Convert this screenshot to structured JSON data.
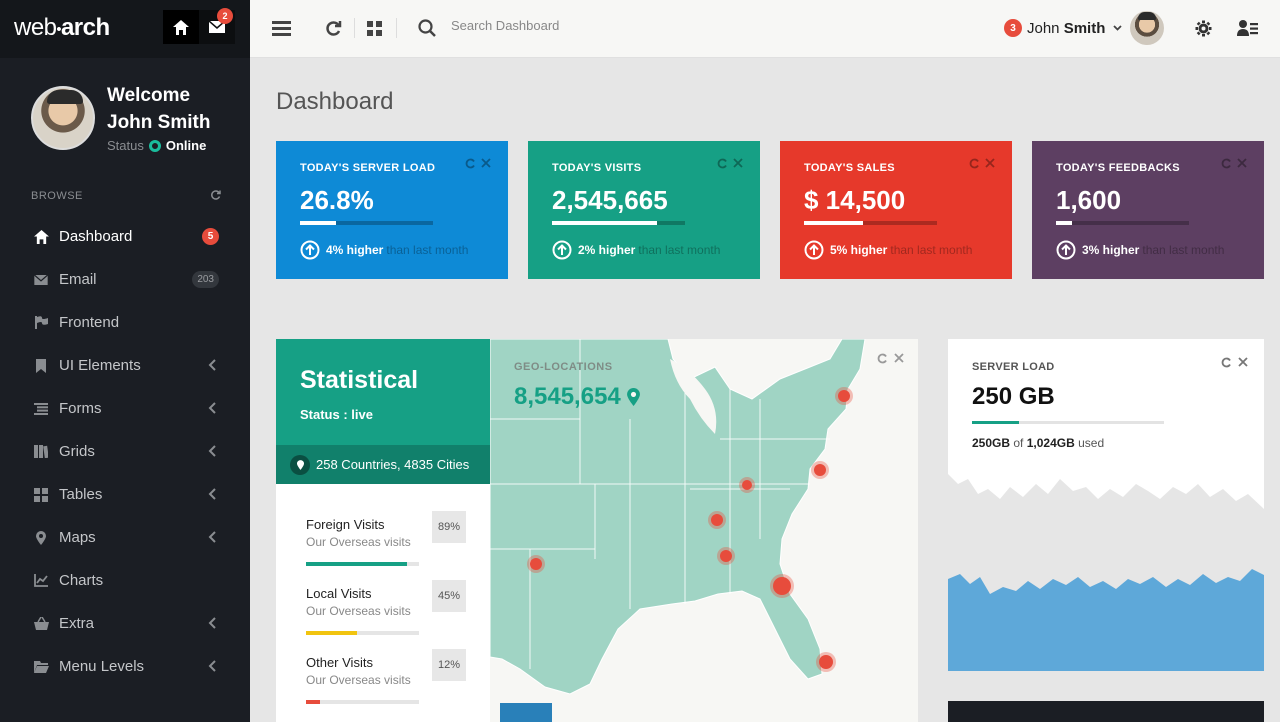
{
  "brand": {
    "logo_pre": "web",
    "logo_dot": "•",
    "logo_post": "arch",
    "mail_badge": "2"
  },
  "profile": {
    "welcome": "Welcome",
    "name": "John Smith",
    "status_label": "Status",
    "status_value": "Online"
  },
  "sidebar": {
    "section": "BROWSE",
    "items": [
      {
        "label": "Dashboard",
        "icon": "home-icon",
        "badge": "5",
        "active": true
      },
      {
        "label": "Email",
        "icon": "envelope-icon",
        "badge": "203"
      },
      {
        "label": "Frontend",
        "icon": "flag-icon"
      },
      {
        "label": "UI Elements",
        "icon": "bookmark-icon"
      },
      {
        "label": "Forms",
        "icon": "list-icon"
      },
      {
        "label": "Grids",
        "icon": "book-icon"
      },
      {
        "label": "Tables",
        "icon": "grid-icon"
      },
      {
        "label": "Maps",
        "icon": "map-pin-icon"
      },
      {
        "label": "Charts",
        "icon": "chart-icon"
      },
      {
        "label": "Extra",
        "icon": "basket-icon"
      },
      {
        "label": "Menu Levels",
        "icon": "folder-icon"
      }
    ]
  },
  "header": {
    "search_placeholder": "Search Dashboard",
    "user_badge": "3",
    "user_first": "John",
    "user_last": "Smith"
  },
  "page": {
    "title": "Dashboard"
  },
  "tiles": [
    {
      "label": "TODAY'S SERVER LOAD",
      "value": "26.8%",
      "progress": 0.27,
      "change": "4% higher",
      "suffix": "than last month",
      "color": "#0e8ad6"
    },
    {
      "label": "TODAY'S VISITS",
      "value": "2,545,665",
      "progress": 0.79,
      "change": "2% higher",
      "suffix": "than last month",
      "color": "#16a085"
    },
    {
      "label": "TODAY'S SALES",
      "value": "$ 14,500",
      "progress": 0.44,
      "change": "5% higher",
      "suffix": "than last month",
      "color": "#e6392b"
    },
    {
      "label": "TODAY'S FEEDBACKS",
      "value": "1,600",
      "progress": 0.12,
      "change": "3% higher",
      "suffix": "than last month",
      "color": "#5d3f62"
    }
  ],
  "statistical": {
    "title": "Statistical",
    "status": "Status : live",
    "locations": "258 Countries, 4835 Cities",
    "visits": [
      {
        "name": "Foreign Visits",
        "sub": "Our Overseas visits",
        "pct": "89%",
        "fraction": 0.89,
        "color": "#16a085"
      },
      {
        "name": "Local Visits",
        "sub": "Our Overseas visits",
        "pct": "45%",
        "fraction": 0.45,
        "color": "#f1c40f"
      },
      {
        "name": "Other Visits",
        "sub": "Our Overseas visits",
        "pct": "12%",
        "fraction": 0.12,
        "color": "#e74c3c"
      }
    ],
    "geo_label": "GEO-LOCATIONS",
    "geo_value": "8,545,654"
  },
  "server": {
    "label": "SERVER LOAD",
    "value": "250 GB",
    "used": "250GB",
    "of_text": "of",
    "total": "1,024GB",
    "used_text": "used",
    "fraction": 0.244
  }
}
